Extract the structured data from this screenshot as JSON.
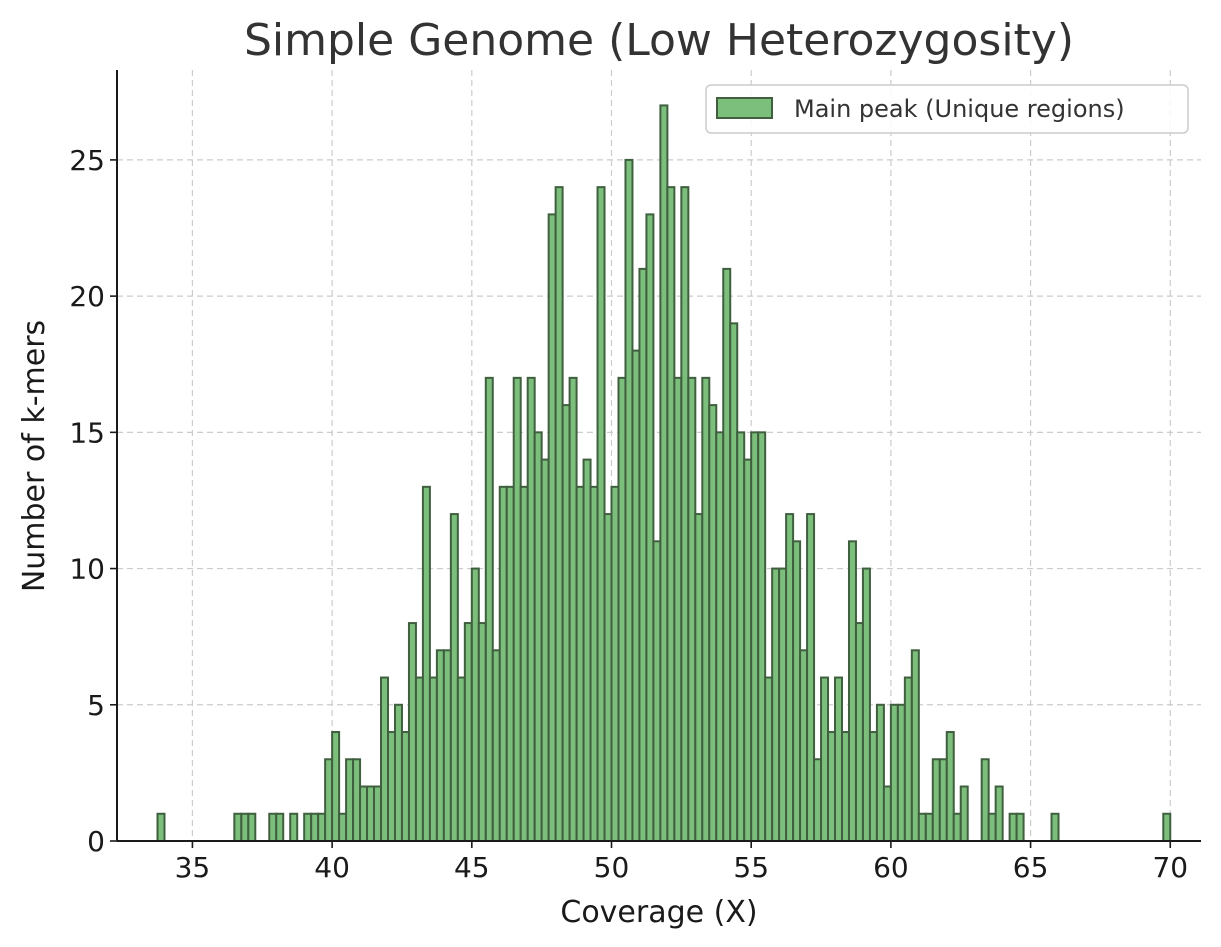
{
  "chart_data": {
    "type": "bar",
    "title": "Simple Genome (Low Heterozygosity)",
    "xlabel": "Coverage (X)",
    "ylabel": "Number of k-mers",
    "xlim": [
      32.3,
      71.1
    ],
    "ylim": [
      0,
      28.3
    ],
    "xticks": [
      35,
      40,
      45,
      50,
      55,
      60,
      65,
      70
    ],
    "yticks": [
      0,
      5,
      10,
      15,
      20,
      25
    ],
    "grid": true,
    "legend": {
      "position": "top-right",
      "entries": [
        "Main peak (Unique regions)"
      ]
    },
    "colors": {
      "bar_fill": "#7cbf7c",
      "bar_edge": "#3f5f3f"
    },
    "bin_width": 0.25,
    "series": [
      {
        "name": "Main peak (Unique regions)",
        "bins": [
          [
            33.75,
            1
          ],
          [
            36.5,
            1
          ],
          [
            36.75,
            1
          ],
          [
            37.0,
            1
          ],
          [
            37.75,
            1
          ],
          [
            38.0,
            1
          ],
          [
            38.5,
            1
          ],
          [
            39.0,
            1
          ],
          [
            39.25,
            1
          ],
          [
            39.5,
            1
          ],
          [
            39.75,
            3
          ],
          [
            40.0,
            4
          ],
          [
            40.25,
            1
          ],
          [
            40.5,
            3
          ],
          [
            40.75,
            3
          ],
          [
            41.0,
            2
          ],
          [
            41.25,
            2
          ],
          [
            41.5,
            2
          ],
          [
            41.75,
            6
          ],
          [
            42.0,
            4
          ],
          [
            42.25,
            5
          ],
          [
            42.5,
            4
          ],
          [
            42.75,
            8
          ],
          [
            43.0,
            6
          ],
          [
            43.25,
            13
          ],
          [
            43.5,
            6
          ],
          [
            43.75,
            7
          ],
          [
            44.0,
            7
          ],
          [
            44.25,
            12
          ],
          [
            44.5,
            6
          ],
          [
            44.75,
            8
          ],
          [
            45.0,
            10
          ],
          [
            45.25,
            8
          ],
          [
            45.5,
            17
          ],
          [
            45.75,
            7
          ],
          [
            46.0,
            13
          ],
          [
            46.25,
            13
          ],
          [
            46.5,
            17
          ],
          [
            46.75,
            13
          ],
          [
            47.0,
            17
          ],
          [
            47.25,
            15
          ],
          [
            47.5,
            14
          ],
          [
            47.75,
            23
          ],
          [
            48.0,
            24
          ],
          [
            48.25,
            16
          ],
          [
            48.5,
            17
          ],
          [
            48.75,
            13
          ],
          [
            49.0,
            14
          ],
          [
            49.25,
            13
          ],
          [
            49.5,
            24
          ],
          [
            49.75,
            12
          ],
          [
            50.0,
            13
          ],
          [
            50.25,
            17
          ],
          [
            50.5,
            25
          ],
          [
            50.75,
            18
          ],
          [
            51.0,
            21
          ],
          [
            51.25,
            23
          ],
          [
            51.5,
            11
          ],
          [
            51.75,
            27
          ],
          [
            52.0,
            24
          ],
          [
            52.25,
            17
          ],
          [
            52.5,
            24
          ],
          [
            52.75,
            17
          ],
          [
            53.0,
            12
          ],
          [
            53.25,
            17
          ],
          [
            53.5,
            16
          ],
          [
            53.75,
            15
          ],
          [
            54.0,
            21
          ],
          [
            54.25,
            19
          ],
          [
            54.5,
            15
          ],
          [
            54.75,
            14
          ],
          [
            55.0,
            15
          ],
          [
            55.25,
            15
          ],
          [
            55.5,
            6
          ],
          [
            55.75,
            10
          ],
          [
            56.0,
            10
          ],
          [
            56.25,
            12
          ],
          [
            56.5,
            11
          ],
          [
            56.75,
            7
          ],
          [
            57.0,
            12
          ],
          [
            57.25,
            3
          ],
          [
            57.5,
            6
          ],
          [
            57.75,
            4
          ],
          [
            58.0,
            6
          ],
          [
            58.25,
            4
          ],
          [
            58.5,
            11
          ],
          [
            58.75,
            8
          ],
          [
            59.0,
            10
          ],
          [
            59.25,
            4
          ],
          [
            59.5,
            5
          ],
          [
            59.75,
            2
          ],
          [
            60.0,
            5
          ],
          [
            60.25,
            5
          ],
          [
            60.5,
            6
          ],
          [
            60.75,
            7
          ],
          [
            61.0,
            1
          ],
          [
            61.25,
            1
          ],
          [
            61.5,
            3
          ],
          [
            61.75,
            3
          ],
          [
            62.0,
            4
          ],
          [
            62.25,
            1
          ],
          [
            62.5,
            2
          ],
          [
            63.25,
            3
          ],
          [
            63.5,
            1
          ],
          [
            63.75,
            2
          ],
          [
            64.25,
            1
          ],
          [
            64.5,
            1
          ],
          [
            65.75,
            1
          ],
          [
            69.75,
            1
          ]
        ]
      }
    ]
  }
}
